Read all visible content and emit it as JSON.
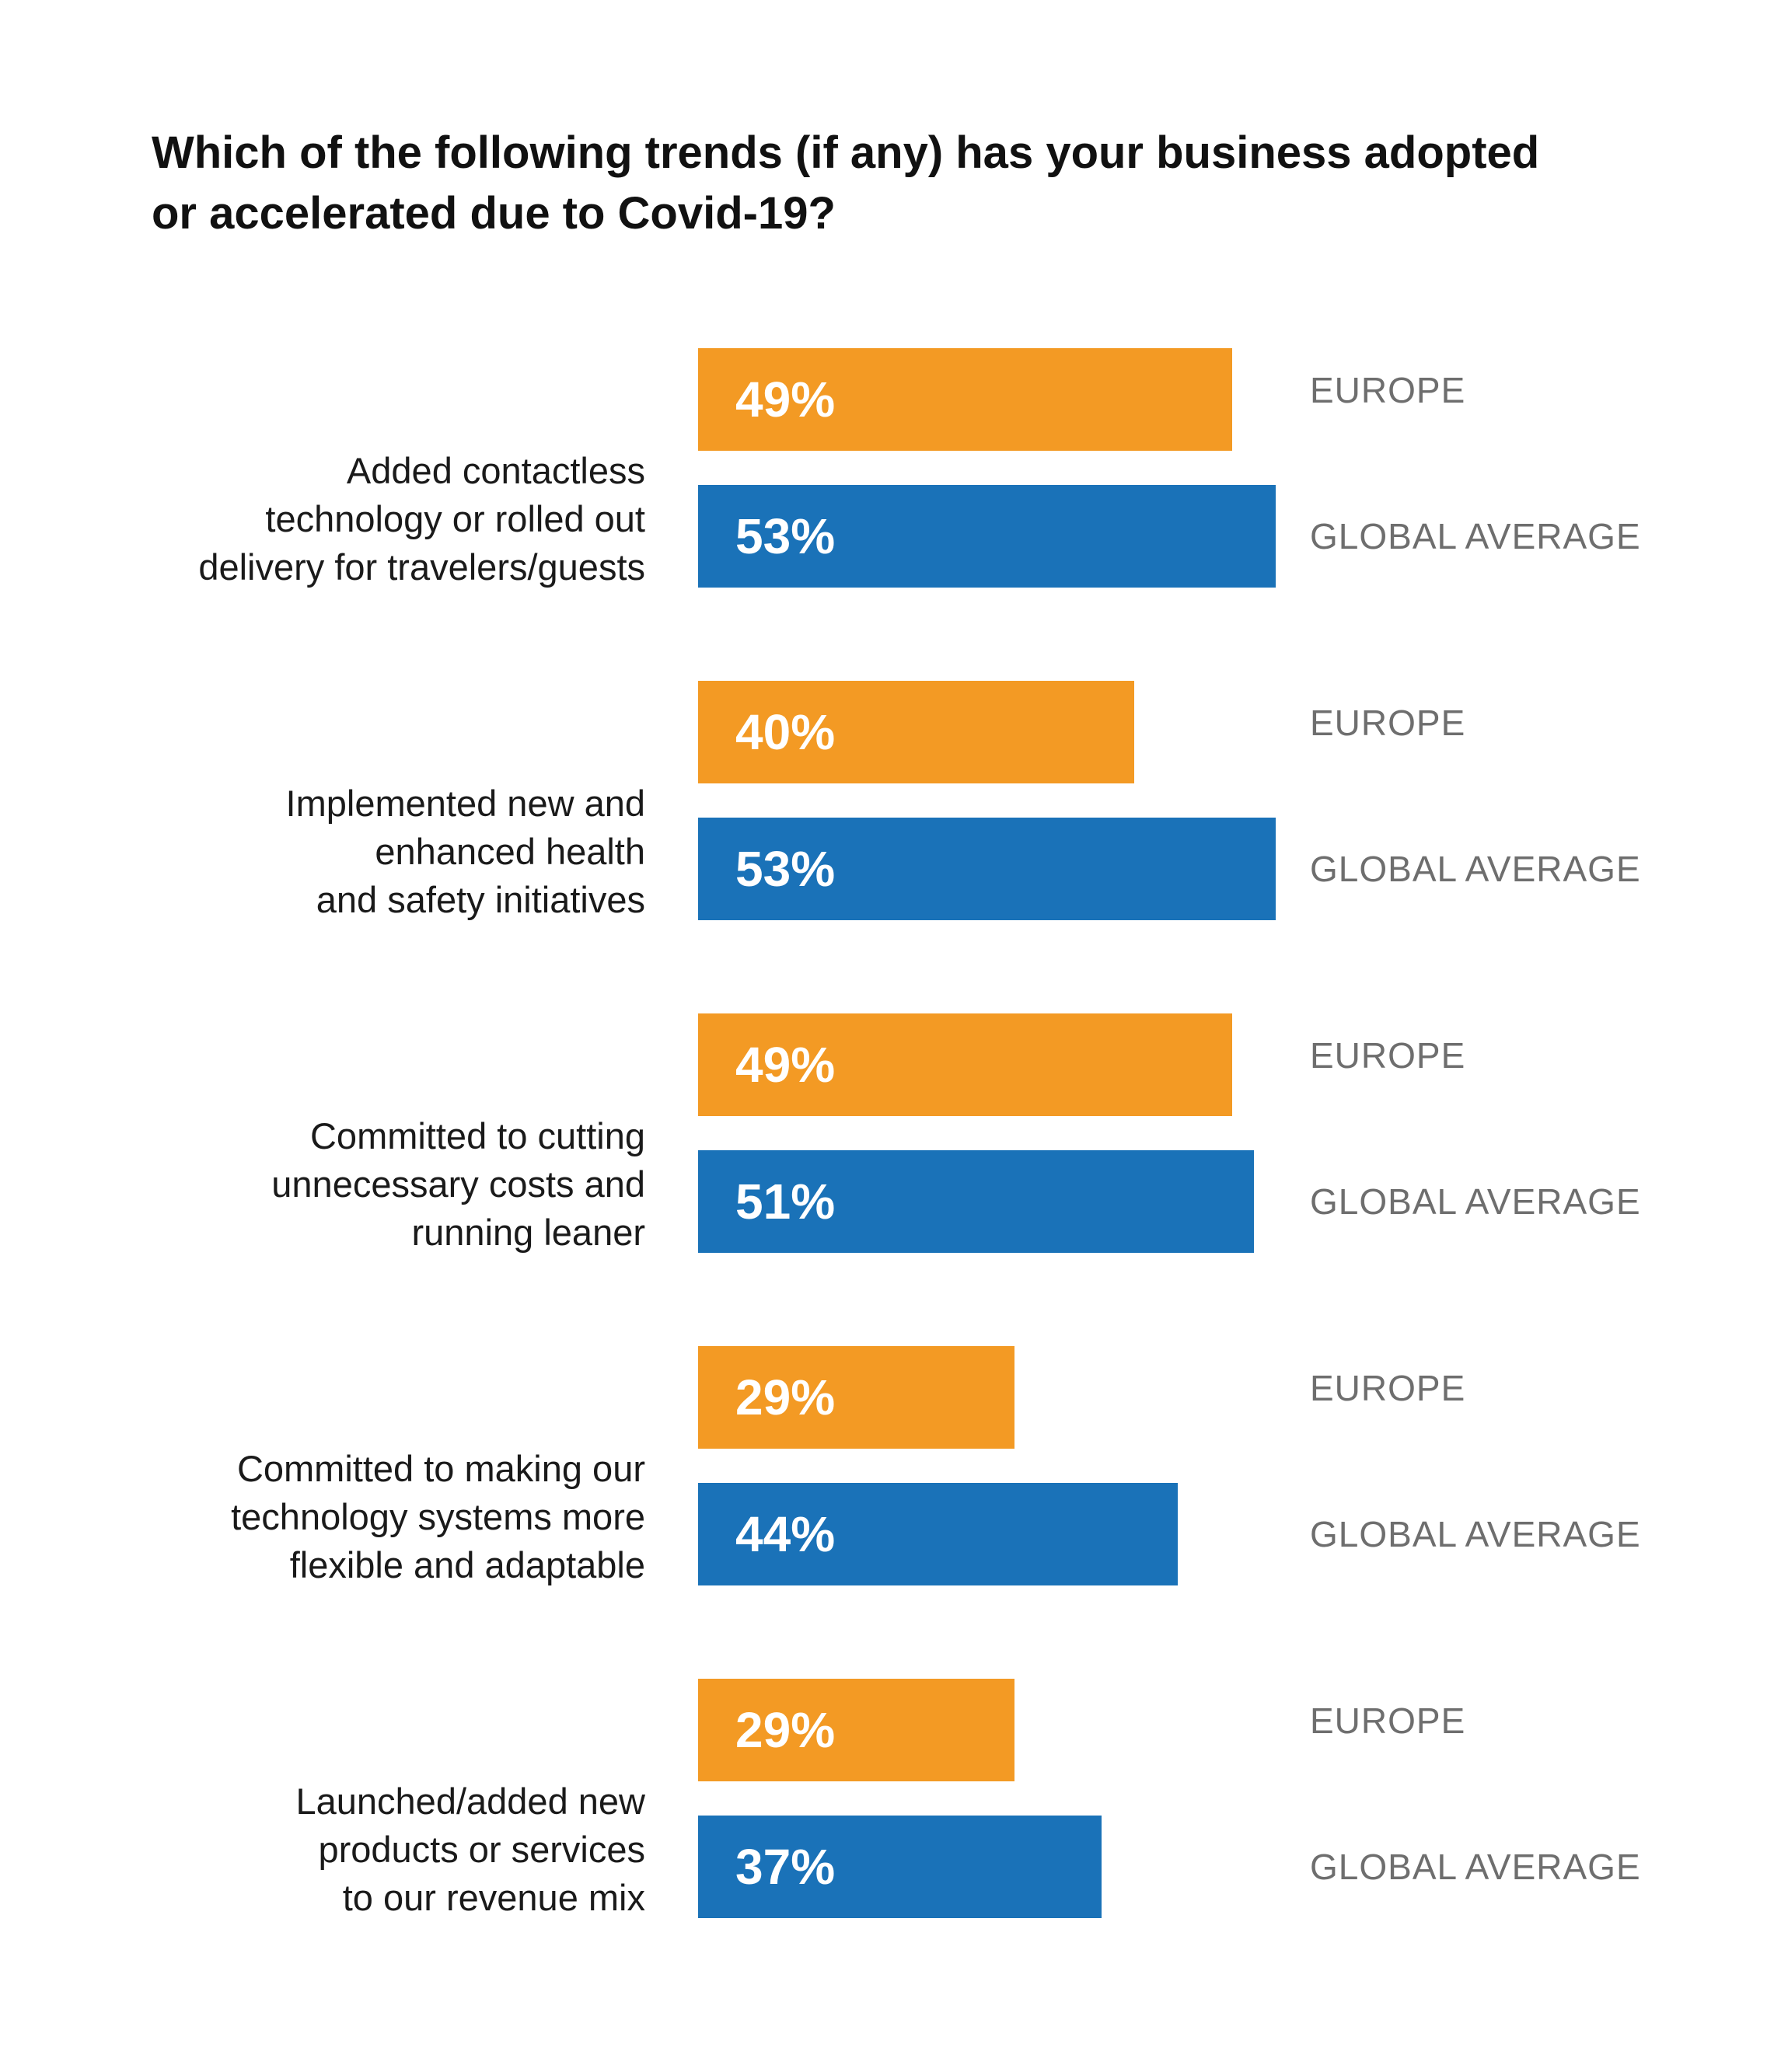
{
  "chart_data": {
    "type": "bar",
    "orientation": "horizontal",
    "title": "Which of the following trends (if any) has your business adopted or accelerated due to Covid-19?",
    "title_lines": [
      "Which of the following trends (if any) has your business adopted",
      "or accelerated due to Covid-19?"
    ],
    "categories": [
      [
        "Added contactless",
        "technology or rolled out",
        "delivery for travelers/guests"
      ],
      [
        "Implemented new and",
        "enhanced health",
        "and safety initiatives"
      ],
      [
        "Committed to cutting",
        "unnecessary costs and",
        "running leaner"
      ],
      [
        "Committed to making our",
        "technology systems more",
        "flexible and adaptable"
      ],
      [
        "Launched/added new",
        "products or services",
        "to our revenue mix"
      ]
    ],
    "series": [
      {
        "name": "EUROPE",
        "color": "#F39A24",
        "values": [
          49,
          40,
          49,
          29,
          29
        ],
        "value_labels": [
          "49%",
          "40%",
          "49%",
          "29%",
          "29%"
        ]
      },
      {
        "name": "GLOBAL AVERAGE",
        "color": "#1A72B8",
        "values": [
          53,
          53,
          51,
          44,
          37
        ],
        "value_labels": [
          "53%",
          "53%",
          "51%",
          "44%",
          "37%"
        ]
      }
    ],
    "xlim": [
      0,
      53
    ],
    "grid": false,
    "legend": "inline-right"
  }
}
